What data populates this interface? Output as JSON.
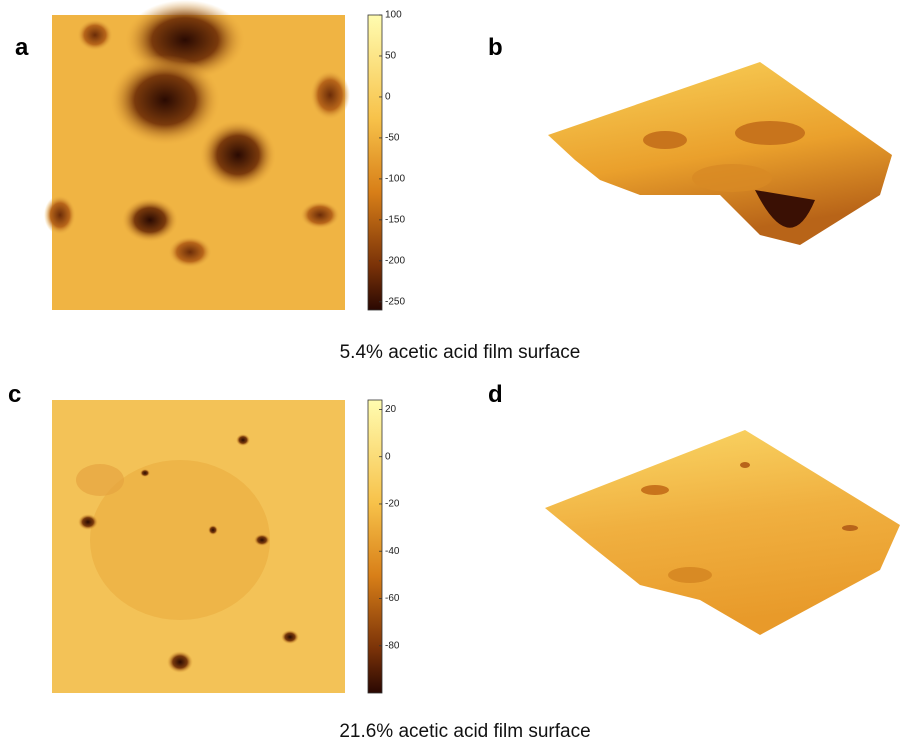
{
  "panels": [
    {
      "label": "a"
    },
    {
      "label": "b"
    },
    {
      "label": "c"
    },
    {
      "label": "d"
    }
  ],
  "rows": [
    {
      "caption": "5.4% acetic acid film surface",
      "colorbar": {
        "ylim": [
          -260,
          100
        ],
        "yticks": [
          100,
          50,
          0,
          -50,
          -100,
          -150,
          -200,
          -250
        ]
      }
    },
    {
      "caption": "21.6% acetic acid film surface",
      "colorbar": {
        "ylim": [
          -100,
          24
        ],
        "yticks": [
          20,
          0,
          -20,
          -40,
          -60,
          -80
        ]
      }
    }
  ]
}
